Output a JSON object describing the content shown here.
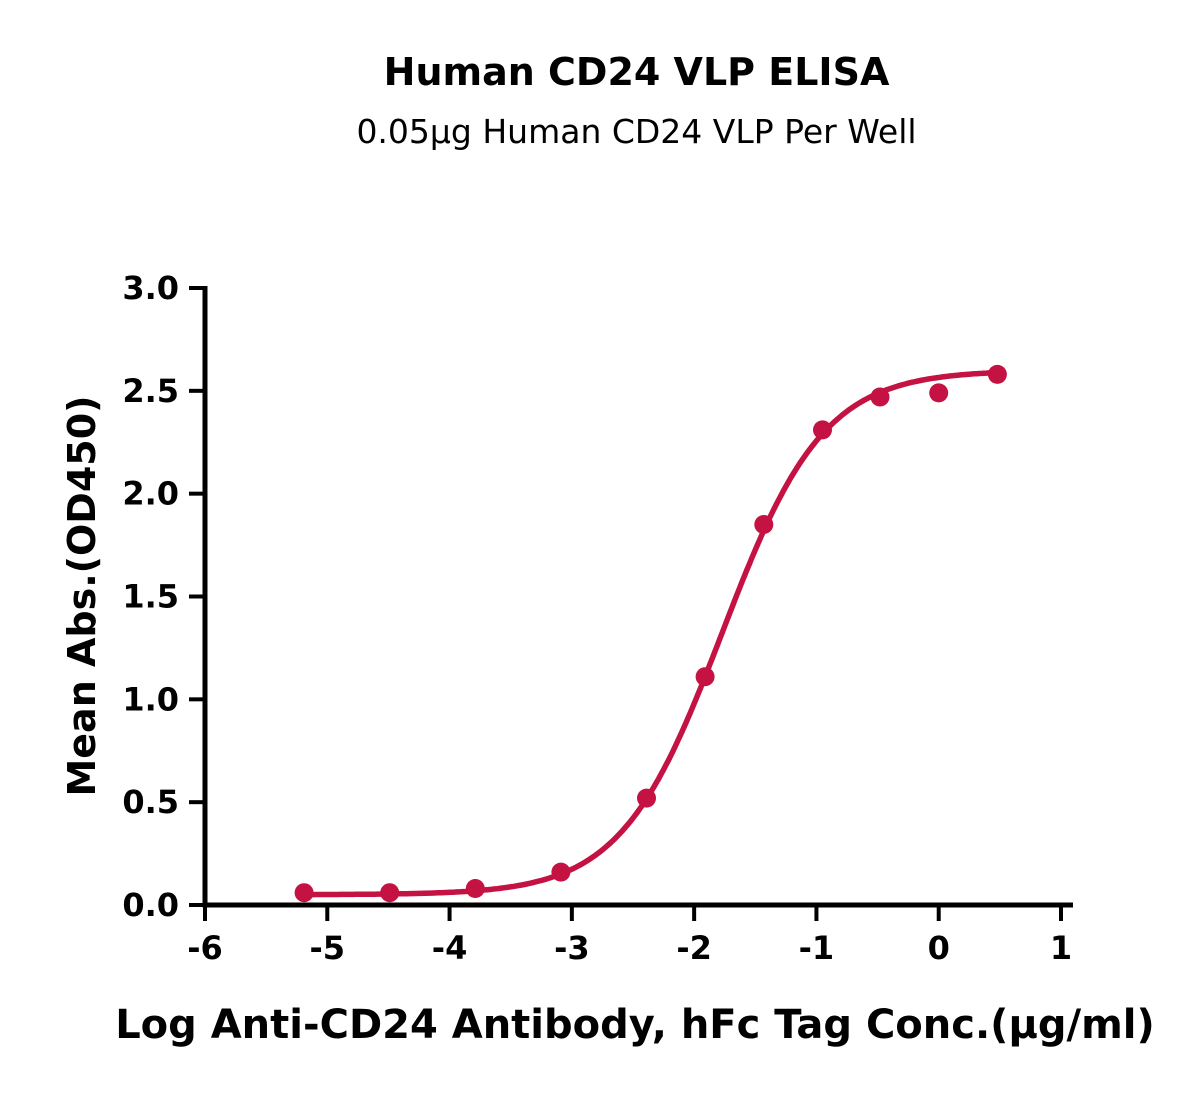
{
  "chart_data": {
    "type": "scatter",
    "title": "Human CD24 VLP ELISA",
    "subtitle": "0.05μg Human CD24 VLP Per Well",
    "xlabel": "Log Anti-CD24 Antibody, hFc Tag Conc.(μg/ml)",
    "ylabel": "Mean Abs.(OD450)",
    "xlim": [
      -6,
      1
    ],
    "ylim": [
      0,
      3
    ],
    "grid": false,
    "legend": null,
    "xticks": [
      {
        "value": -6,
        "label": "-6"
      },
      {
        "value": -5,
        "label": "-5"
      },
      {
        "value": -4,
        "label": "-4"
      },
      {
        "value": -3,
        "label": "-3"
      },
      {
        "value": -2,
        "label": "-2"
      },
      {
        "value": -1,
        "label": "-1"
      },
      {
        "value": 0,
        "label": "0"
      },
      {
        "value": 1,
        "label": "1"
      }
    ],
    "yticks": [
      {
        "value": 0,
        "label": "0.0"
      },
      {
        "value": 0.5,
        "label": "0.5"
      },
      {
        "value": 1,
        "label": "1.0"
      },
      {
        "value": 1.5,
        "label": "1.5"
      },
      {
        "value": 2,
        "label": "2.0"
      },
      {
        "value": 2.5,
        "label": "2.5"
      },
      {
        "value": 3,
        "label": "3.0"
      }
    ],
    "series_name": "Anti-CD24 Antibody, hFc Tag",
    "x": [
      -5.19,
      -4.49,
      -3.79,
      -3.09,
      -2.39,
      -1.91,
      -1.43,
      -0.95,
      -0.48,
      0,
      0.48
    ],
    "y": [
      0.06,
      0.06,
      0.08,
      0.16,
      0.52,
      1.11,
      1.85,
      2.31,
      2.47,
      2.49,
      2.58
    ],
    "fit": {
      "model": "4PL",
      "bottom": 0.05,
      "top": 2.6,
      "log_ec50": -1.77,
      "hill": 1.05
    },
    "colors": {
      "curve": "#C41243",
      "marker": "#C41243",
      "axis": "#000000"
    }
  }
}
